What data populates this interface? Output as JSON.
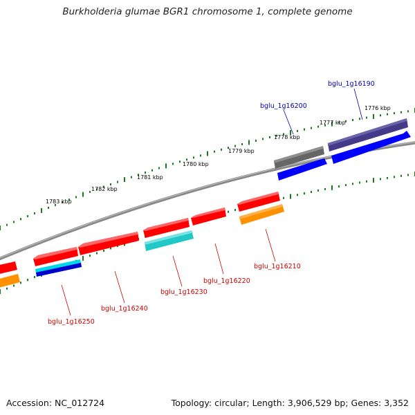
{
  "title": "Burkholderia glumae BGR1 chromosome 1, complete genome",
  "footer": {
    "accession": "Accession: NC_012724",
    "summary": "Topology: circular; Length: 3,906,529 bp; Genes: 3,352"
  },
  "ruler": {
    "labels": [
      "1776 kbp",
      "1777 kbp",
      "1778 kbp",
      "1779 kbp",
      "1780 kbp",
      "1781 kbp",
      "1782 kbp",
      "1783 kbp"
    ]
  },
  "genes_top": [
    {
      "id": "g16190",
      "label": "bglu_1g16190"
    },
    {
      "id": "g16200",
      "label": "bglu_1g16200"
    }
  ],
  "genes_bottom": [
    {
      "id": "g16210",
      "label": "bglu_1g16210"
    },
    {
      "id": "g16220",
      "label": "bglu_1g16220"
    },
    {
      "id": "g16230",
      "label": "bglu_1g16230"
    },
    {
      "id": "g16240",
      "label": "bglu_1g16240"
    },
    {
      "id": "g16250",
      "label": "bglu_1g16250"
    }
  ],
  "colors": {
    "plus_strand_label": "#0000aa",
    "minus_strand_label": "#cc0000",
    "gene_red": "#ff0000",
    "gene_blue": "#0000ff",
    "gene_navy": "#443a88",
    "gene_grey": "#666666",
    "gene_cyan": "#22c8c8",
    "gene_orange": "#ff9000",
    "tick_green": "#1a7a1a",
    "backbone": "#888888"
  }
}
